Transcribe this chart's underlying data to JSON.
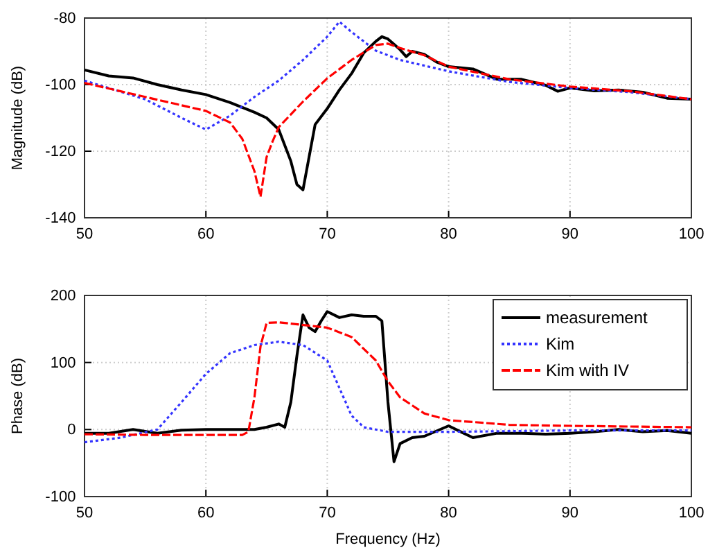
{
  "chart_data": [
    {
      "type": "line",
      "ylabel": "Magnitude (dB)",
      "xlim": [
        50,
        100
      ],
      "ylim": [
        -140,
        -80
      ],
      "xticks": [
        50,
        60,
        70,
        80,
        90,
        100
      ],
      "yticks": [
        -140,
        -120,
        -100,
        -80
      ],
      "grid": true,
      "series": [
        {
          "color": "#000000",
          "line_style": "solid",
          "x": [
            50,
            52,
            54,
            56,
            58,
            60,
            62,
            64,
            65,
            66,
            67,
            67.5,
            68,
            68.5,
            69,
            70,
            71,
            72,
            73,
            74,
            74.5,
            75,
            76,
            76.5,
            77,
            78,
            79,
            80,
            82,
            84,
            86,
            88,
            89,
            90,
            92,
            94,
            96,
            98,
            100
          ],
          "values": [
            -95.6,
            -97.4,
            -98,
            -100,
            -101.6,
            -103,
            -105.4,
            -108.3,
            -110,
            -113.5,
            -123,
            -130,
            -131.6,
            -121.8,
            -112,
            -107.2,
            -101.6,
            -96.7,
            -90.5,
            -87,
            -85.6,
            -86.3,
            -89.5,
            -91.6,
            -90,
            -90.9,
            -93.2,
            -94.6,
            -95.3,
            -98.4,
            -98.4,
            -100.2,
            -102,
            -101,
            -101.9,
            -101.6,
            -102.3,
            -104.1,
            -104.4
          ]
        },
        {
          "color": "#3333ff",
          "line_style": "dotted",
          "x": [
            50,
            55,
            58,
            60,
            62,
            64,
            66,
            68,
            70,
            71,
            72,
            74,
            76,
            80,
            85,
            90,
            95,
            100
          ],
          "values": [
            -98.8,
            -104.4,
            -110,
            -113.5,
            -109.3,
            -103.7,
            -98.8,
            -92.6,
            -85.6,
            -81.1,
            -84.2,
            -89.8,
            -92.6,
            -96,
            -99.2,
            -101,
            -102.3,
            -104.4
          ]
        },
        {
          "color": "#ff0000",
          "line_style": "dashed",
          "x": [
            50,
            55,
            60,
            62,
            63,
            64,
            64.5,
            65,
            65.5,
            66,
            68,
            70,
            72,
            74,
            75,
            76,
            78,
            80,
            85,
            90,
            95,
            100
          ],
          "values": [
            -99.5,
            -103.7,
            -107.9,
            -111.4,
            -116.3,
            -126,
            -133.7,
            -121.8,
            -117,
            -112.8,
            -105.1,
            -98.1,
            -92.6,
            -88.1,
            -87.7,
            -89,
            -91.2,
            -94.6,
            -98.4,
            -100.6,
            -102,
            -104.4
          ]
        }
      ]
    },
    {
      "type": "line",
      "xlabel": "Frequency (Hz)",
      "ylabel": "Phase (dB)",
      "xlim": [
        50,
        100
      ],
      "ylim": [
        -100,
        200
      ],
      "xticks": [
        50,
        60,
        70,
        80,
        90,
        100
      ],
      "yticks": [
        -100,
        0,
        100,
        200
      ],
      "grid": true,
      "legend": "top right",
      "series": [
        {
          "name": "measurement",
          "color": "#000000",
          "line_style": "solid",
          "x": [
            50,
            52,
            54,
            56,
            58,
            60,
            62,
            64,
            65,
            66,
            66.5,
            67,
            67.5,
            68,
            68.5,
            69,
            69.5,
            70,
            71,
            72,
            73,
            74,
            74.5,
            75,
            75.5,
            76,
            77,
            78,
            80,
            81,
            82,
            84,
            86,
            88,
            90,
            92,
            94,
            96,
            98,
            100
          ],
          "values": [
            -5.5,
            -5.5,
            0,
            -5.5,
            -1,
            0,
            0,
            0,
            3.4,
            8.3,
            3.4,
            41,
            110,
            171,
            152,
            146,
            162,
            176,
            167,
            171,
            169,
            169,
            162,
            41,
            -48,
            -21,
            -12,
            -10,
            5.5,
            -3.4,
            -12,
            -5.5,
            -5.5,
            -7,
            -5.5,
            -3.4,
            0,
            -3.4,
            -1.4,
            -5.5
          ]
        },
        {
          "name": "Kim",
          "color": "#3333ff",
          "line_style": "dotted",
          "x": [
            50,
            53,
            56,
            58,
            60,
            62,
            64,
            66,
            68,
            70,
            71,
            72,
            73,
            75,
            80,
            90,
            100
          ],
          "values": [
            -19,
            -12,
            0,
            41,
            83,
            114,
            126,
            131,
            126,
            103,
            62,
            21,
            3.4,
            -3.4,
            -3.4,
            -1.4,
            -1.4
          ]
        },
        {
          "name": "Kim with IV",
          "color": "#ff0000",
          "line_style": "dashed",
          "x": [
            50,
            55,
            63,
            63.5,
            64,
            64.5,
            65,
            66,
            70,
            72,
            74,
            75,
            76,
            78,
            80,
            85,
            90,
            100
          ],
          "values": [
            -7,
            -8,
            -8,
            -3.4,
            48,
            124,
            159,
            160,
            152,
            138,
            103,
            72,
            48,
            24,
            14,
            7,
            5.5,
            3.4
          ]
        }
      ]
    }
  ]
}
